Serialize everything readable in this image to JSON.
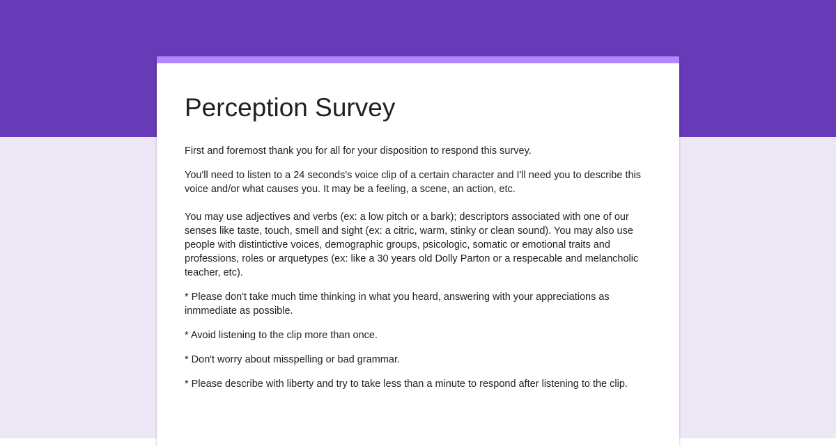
{
  "theme": {
    "header_color": "#673ab7",
    "background_color": "#ede7f6",
    "accent_color": "#b388ff",
    "card_color": "#ffffff"
  },
  "form": {
    "title": "Perception Survey",
    "description": [
      "First and foremost thank you for all for your disposition to respond this survey.",
      "You'll need to listen to a 24 seconds's voice clip of a certain character and I'll need you to describe this voice and/or what causes you. It may be a feeling, a scene, an action, etc.\n\nYou may use adjectives and verbs (ex: a low pitch or a bark); descriptors associated with one of our senses like taste, touch, smell and sight (ex: a citric, warm, stinky or clean sound). You may also use people with distintictive voices, demographic groups, psicologic, somatic or emotional traits and professions, roles or arquetypes (ex: like a 30 years old Dolly Parton or a respecable and melancholic teacher, etc).",
      "* Please don't take much time thinking in what you heard, answering with your appreciations as inmmediate as possible.",
      "* Avoid listening to the clip more than once.",
      "* Don't worry about misspelling or bad grammar.",
      "* Please describe with liberty and try to take less than a minute to respond after listening to the clip."
    ]
  }
}
